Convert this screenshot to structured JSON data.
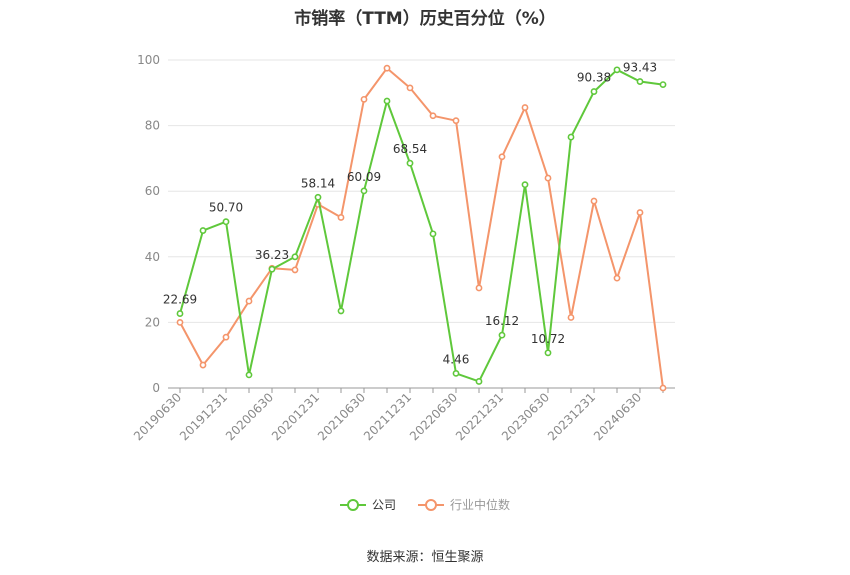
{
  "chart_data": {
    "type": "line",
    "title": "市销率（TTM）历史百分位（%）",
    "xlabel": "",
    "ylabel": "",
    "ylim": [
      0,
      100
    ],
    "yticks": [
      0,
      20,
      40,
      60,
      80,
      100
    ],
    "x": [
      "20190630",
      "20190930",
      "20191231",
      "20200331",
      "20200630",
      "20200930",
      "20201231",
      "20210331",
      "20210630",
      "20210930",
      "20211231",
      "20220331",
      "20220630",
      "20220930",
      "20221231",
      "20230331",
      "20230630",
      "20230930",
      "20231231",
      "20240331",
      "20240630",
      "20240930"
    ],
    "xtick_labels": [
      "20190630",
      "20191231",
      "20200630",
      "20201231",
      "20210630",
      "20211231",
      "20220630",
      "20221231",
      "20230630",
      "20231231",
      "20240630"
    ],
    "grid": true,
    "legend_position": "bottom",
    "series": [
      {
        "name": "公司",
        "color": "#5fc83b",
        "values": [
          22.69,
          48.0,
          50.7,
          4.0,
          36.23,
          40.0,
          58.14,
          23.5,
          60.09,
          87.5,
          68.54,
          47.0,
          4.46,
          2.0,
          16.12,
          62.0,
          10.72,
          76.5,
          90.38,
          97.0,
          93.43,
          92.5
        ],
        "labels": [
          "22.69",
          null,
          "50.70",
          null,
          "36.23",
          null,
          "58.14",
          null,
          "60.09",
          null,
          "68.54",
          null,
          "4.46",
          null,
          "16.12",
          null,
          "10.72",
          null,
          "90.38",
          null,
          "93.43",
          null
        ]
      },
      {
        "name": "行业中位数",
        "color": "#f4956b",
        "values": [
          20.0,
          7.0,
          15.5,
          26.5,
          36.5,
          36.0,
          56.0,
          52.0,
          88.0,
          97.5,
          91.5,
          83.0,
          81.5,
          30.5,
          70.5,
          85.5,
          64.0,
          21.5,
          57.0,
          33.5,
          53.5,
          0.0
        ]
      }
    ],
    "source": "数据来源：恒生聚源"
  }
}
